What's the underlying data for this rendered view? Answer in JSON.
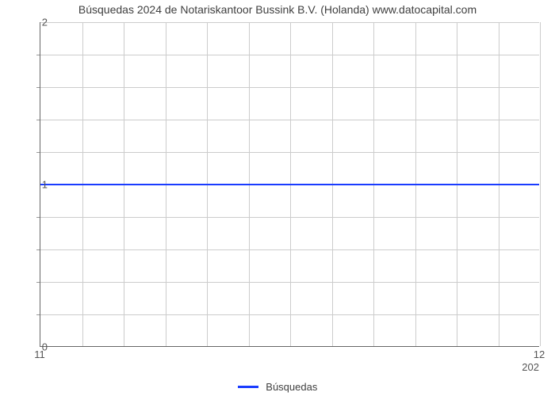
{
  "chart": {
    "type": "line",
    "title": "Búsquedas 2024 de Notariskantoor Bussink B.V. (Holanda) www.datocapital.com",
    "title_fontsize": 14,
    "title_color": "#404040",
    "background_color": "#ffffff",
    "plot_border_color": "#666666",
    "grid_color": "#cccccc",
    "axis_label_color": "#555555",
    "axis_label_fontsize": 13,
    "x": {
      "min": 11,
      "max": 12,
      "ticks": [
        11,
        12
      ],
      "vgrid_count": 12,
      "sub_label": "202"
    },
    "y": {
      "min": 0,
      "max": 2,
      "major_ticks": [
        0,
        1,
        2
      ],
      "minor_per_major": 5
    },
    "series": [
      {
        "name": "Búsquedas",
        "color": "#1a3cff",
        "line_width": 2,
        "data_y": 1
      }
    ],
    "legend": {
      "label": "Búsquedas",
      "swatch_color": "#1a3cff"
    }
  }
}
